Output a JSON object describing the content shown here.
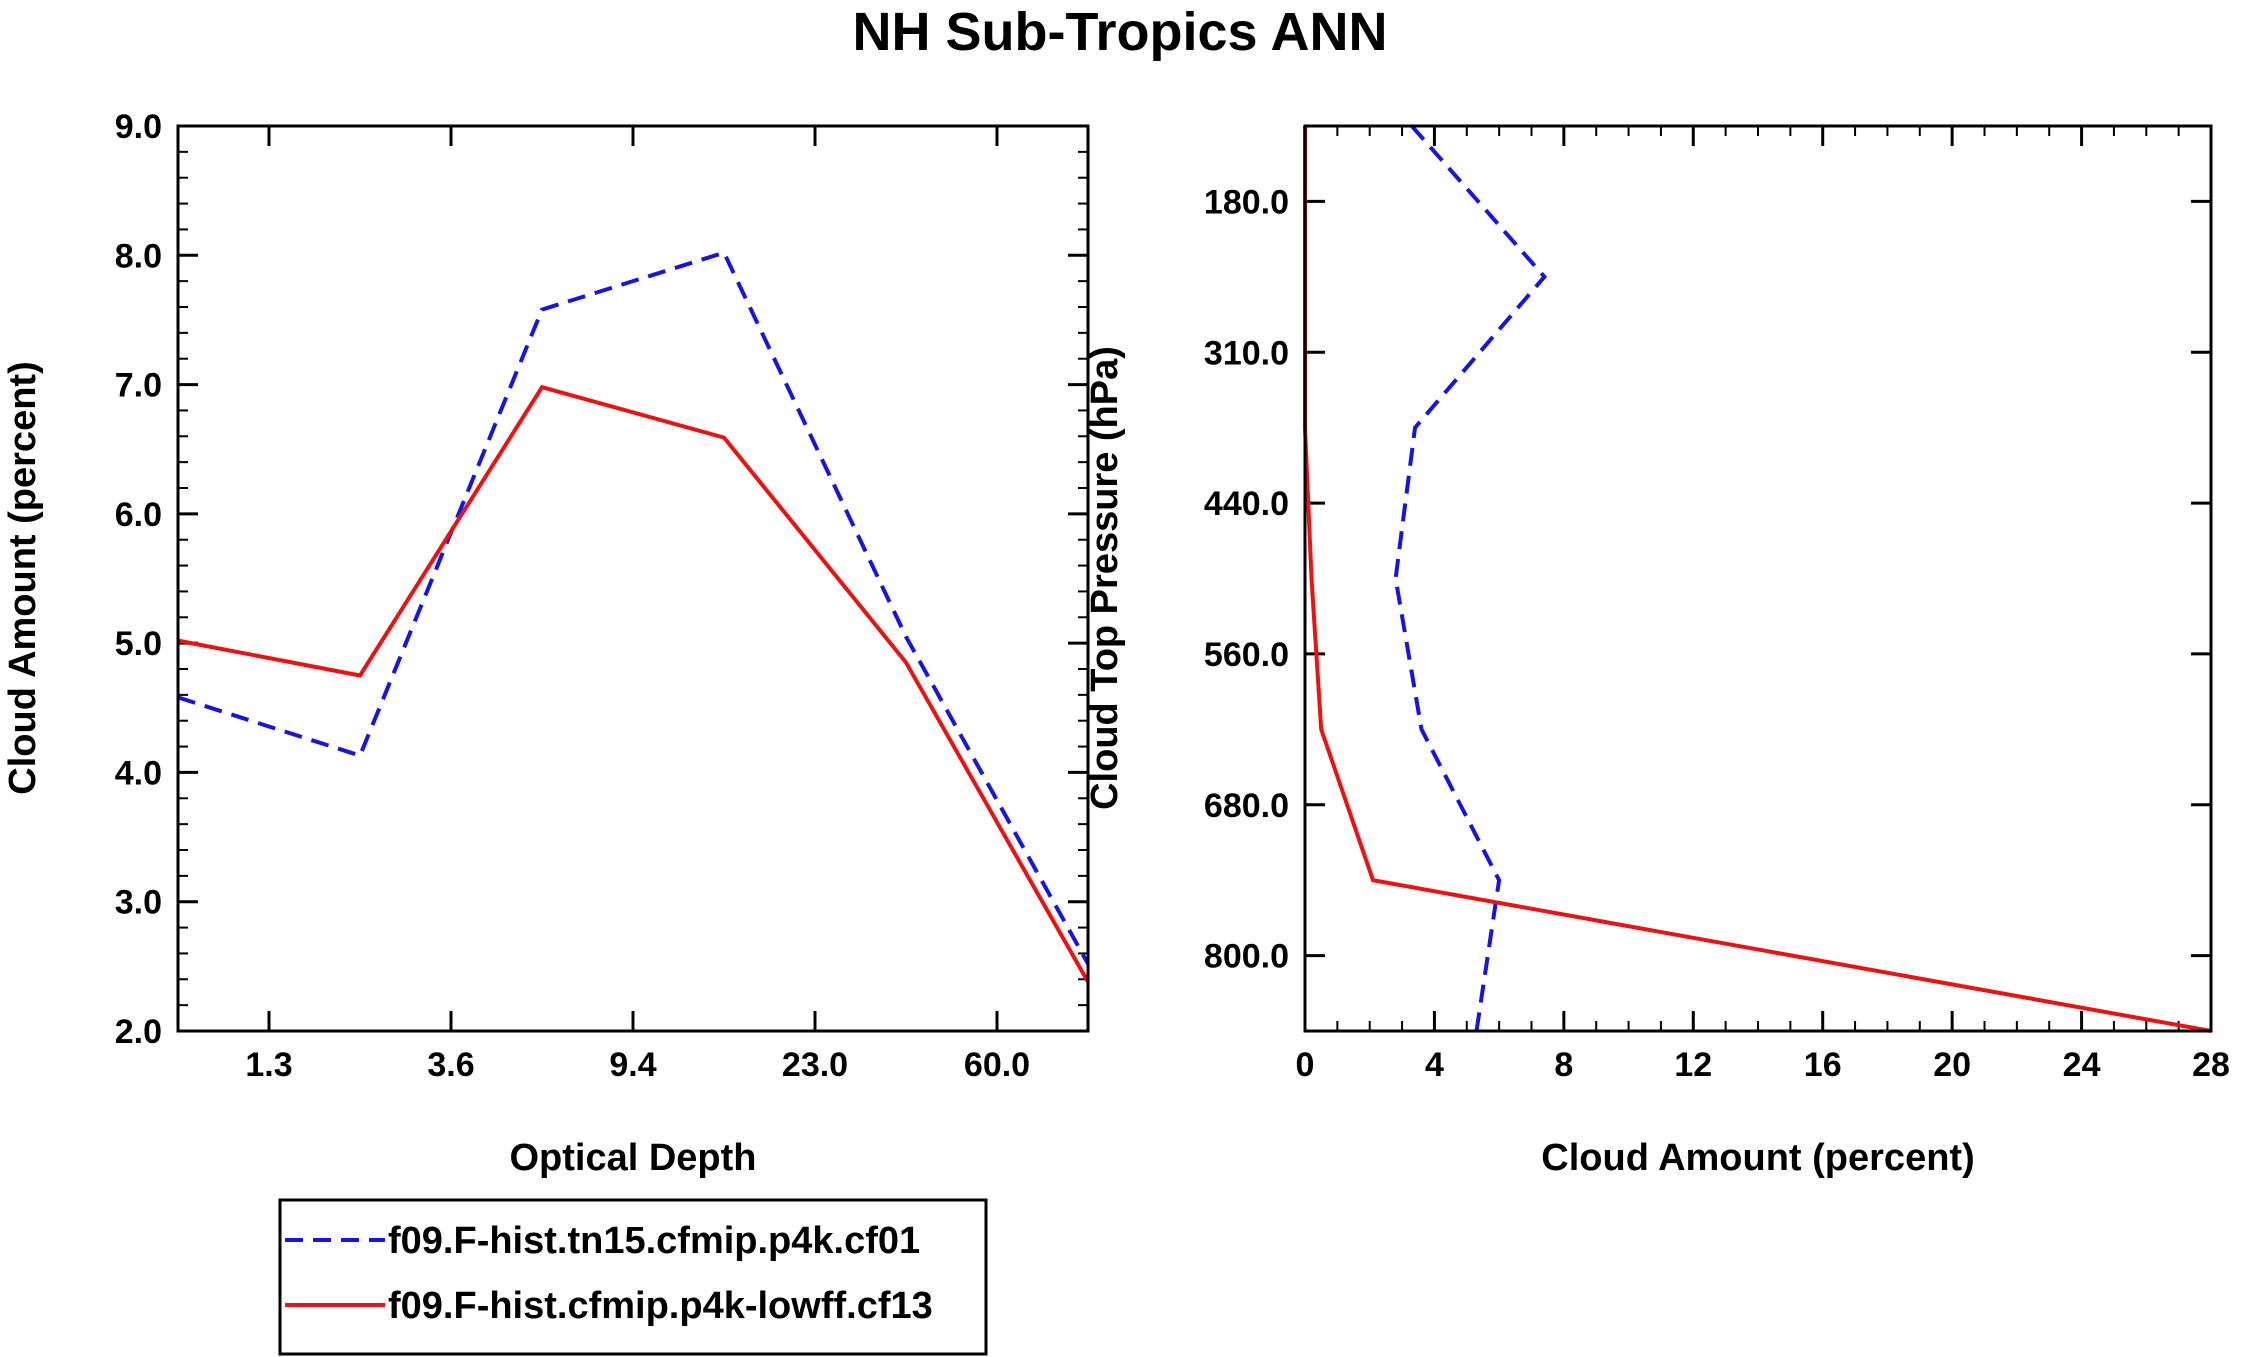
{
  "title": "NH Sub-Tropics ANN",
  "colors": {
    "series1": "#1414e6",
    "series2": "#ee1111",
    "axes": "#000000"
  },
  "chart_data": [
    {
      "type": "line",
      "xlabel": "Optical Depth",
      "ylabel": "Cloud Amount (percent)",
      "ylim": [
        2.0,
        9.0
      ],
      "y_ticks": [
        "2.0",
        "3.0",
        "4.0",
        "5.0",
        "6.0",
        "7.0",
        "8.0",
        "9.0"
      ],
      "x_tick_labels": [
        "1.3",
        "3.6",
        "9.4",
        "23.0",
        "60.0"
      ],
      "x": [
        0,
        1,
        2,
        3,
        4,
        5
      ],
      "series": [
        {
          "name": "f09.F-hist.tn15.cfmip.p4k.cf01",
          "style": "dashed",
          "values": [
            4.58,
            4.13,
            7.58,
            8.02,
            5.05,
            2.52
          ]
        },
        {
          "name": "f09.F-hist.cfmip.p4k-lowff.cf13",
          "style": "solid",
          "values": [
            5.02,
            4.75,
            6.98,
            6.59,
            4.85,
            2.38
          ]
        }
      ]
    },
    {
      "type": "line",
      "xlabel": "Cloud Amount (percent)",
      "ylabel": "Cloud Top Pressure (hPa)",
      "xlim": [
        0,
        28
      ],
      "x_ticks": [
        "0",
        "4",
        "8",
        "12",
        "16",
        "20",
        "24",
        "28"
      ],
      "y_tick_labels": [
        "180.0",
        "310.0",
        "440.0",
        "560.0",
        "680.0",
        "800.0"
      ],
      "y": [
        0,
        1,
        2,
        3,
        4,
        5,
        6
      ],
      "series": [
        {
          "name": "f09.F-hist.tn15.cfmip.p4k.cf01",
          "style": "dashed",
          "values": [
            3.3,
            7.4,
            3.4,
            2.8,
            3.6,
            6.0,
            5.3
          ]
        },
        {
          "name": "f09.F-hist.cfmip.p4k-lowff.cf13",
          "style": "solid",
          "values": [
            0.0,
            0.0,
            0.0,
            0.2,
            0.5,
            2.1,
            28.0
          ]
        }
      ]
    }
  ],
  "legend": [
    {
      "label": "f09.F-hist.tn15.cfmip.p4k.cf01",
      "style": "dashed"
    },
    {
      "label": "f09.F-hist.cfmip.p4k-lowff.cf13",
      "style": "solid"
    }
  ]
}
